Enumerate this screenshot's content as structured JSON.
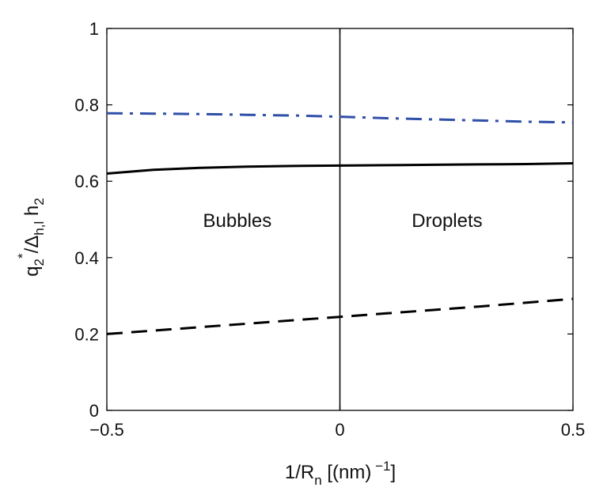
{
  "chart_data": {
    "type": "line",
    "xlabel": "1/R_n [(nm)^-1]",
    "ylabel": "q_2^*/Δ_h,l h_2",
    "xlim": [
      -0.5,
      0.5
    ],
    "ylim": [
      0,
      1
    ],
    "x_ticks": [
      -0.5,
      0,
      0.5
    ],
    "x_tick_labels": [
      "−0.5",
      "0",
      "0.5"
    ],
    "y_ticks": [
      0,
      0.2,
      0.4,
      0.6,
      0.8,
      1
    ],
    "y_tick_labels": [
      "0",
      "0.2",
      "0.4",
      "0.6",
      "0.8",
      "1"
    ],
    "grid": false,
    "legend": "none",
    "vertical_line_x": 0,
    "annotations": [
      {
        "text": "Bubbles",
        "x": -0.22,
        "y": 0.48
      },
      {
        "text": "Droplets",
        "x": 0.23,
        "y": 0.48
      }
    ],
    "series": [
      {
        "style": "dashdot",
        "color": "#2f4fa8",
        "x": [
          -0.5,
          -0.4,
          -0.3,
          -0.2,
          -0.1,
          0,
          0.1,
          0.2,
          0.3,
          0.4,
          0.5
        ],
        "values": [
          0.778,
          0.777,
          0.776,
          0.774,
          0.772,
          0.769,
          0.765,
          0.762,
          0.759,
          0.756,
          0.754
        ]
      },
      {
        "style": "solid",
        "color": "#000000",
        "x": [
          -0.5,
          -0.4,
          -0.3,
          -0.2,
          -0.1,
          0,
          0.1,
          0.2,
          0.3,
          0.4,
          0.5
        ],
        "values": [
          0.62,
          0.63,
          0.635,
          0.638,
          0.64,
          0.641,
          0.642,
          0.643,
          0.644,
          0.645,
          0.647
        ]
      },
      {
        "style": "dashed",
        "color": "#000000",
        "x": [
          -0.5,
          -0.4,
          -0.3,
          -0.2,
          -0.1,
          0,
          0.1,
          0.2,
          0.3,
          0.4,
          0.5
        ],
        "values": [
          0.2,
          0.209,
          0.218,
          0.227,
          0.236,
          0.245,
          0.254,
          0.263,
          0.272,
          0.282,
          0.292
        ]
      }
    ]
  }
}
